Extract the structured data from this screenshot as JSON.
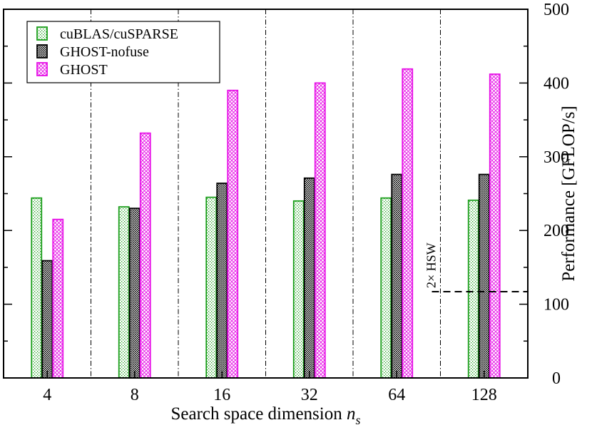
{
  "chart_data": {
    "type": "bar",
    "xlabel": "Search space dimension",
    "xlabel_var": "n",
    "xlabel_sub": "s",
    "ylabel": "Performance [GFLOP/s]",
    "y_axis_side": "right",
    "ylim": [
      0,
      500
    ],
    "yticks": [
      0,
      100,
      200,
      300,
      400,
      500
    ],
    "categories": [
      "4",
      "8",
      "16",
      "32",
      "64",
      "128"
    ],
    "group_separators": "dash-dot vertical lines between groups",
    "legend_position": "top-left",
    "series": [
      {
        "name": "cuBLAS/cuSPARSE",
        "color": "#1a9e1a",
        "pattern": "dots",
        "values": [
          244,
          232,
          245,
          240,
          244,
          241
        ]
      },
      {
        "name": "GHOST-nofuse",
        "color": "#000000",
        "pattern": "dense-dots",
        "values": [
          159,
          230,
          264,
          271,
          276,
          276
        ]
      },
      {
        "name": "GHOST",
        "color": "#e60ee6",
        "pattern": "crosshatch",
        "values": [
          215,
          332,
          390,
          400,
          419,
          412
        ]
      }
    ],
    "annotations": [
      {
        "text": "2× HSW",
        "y": 117,
        "style": "dashed horizontal line",
        "x_from_category": "64"
      }
    ]
  }
}
